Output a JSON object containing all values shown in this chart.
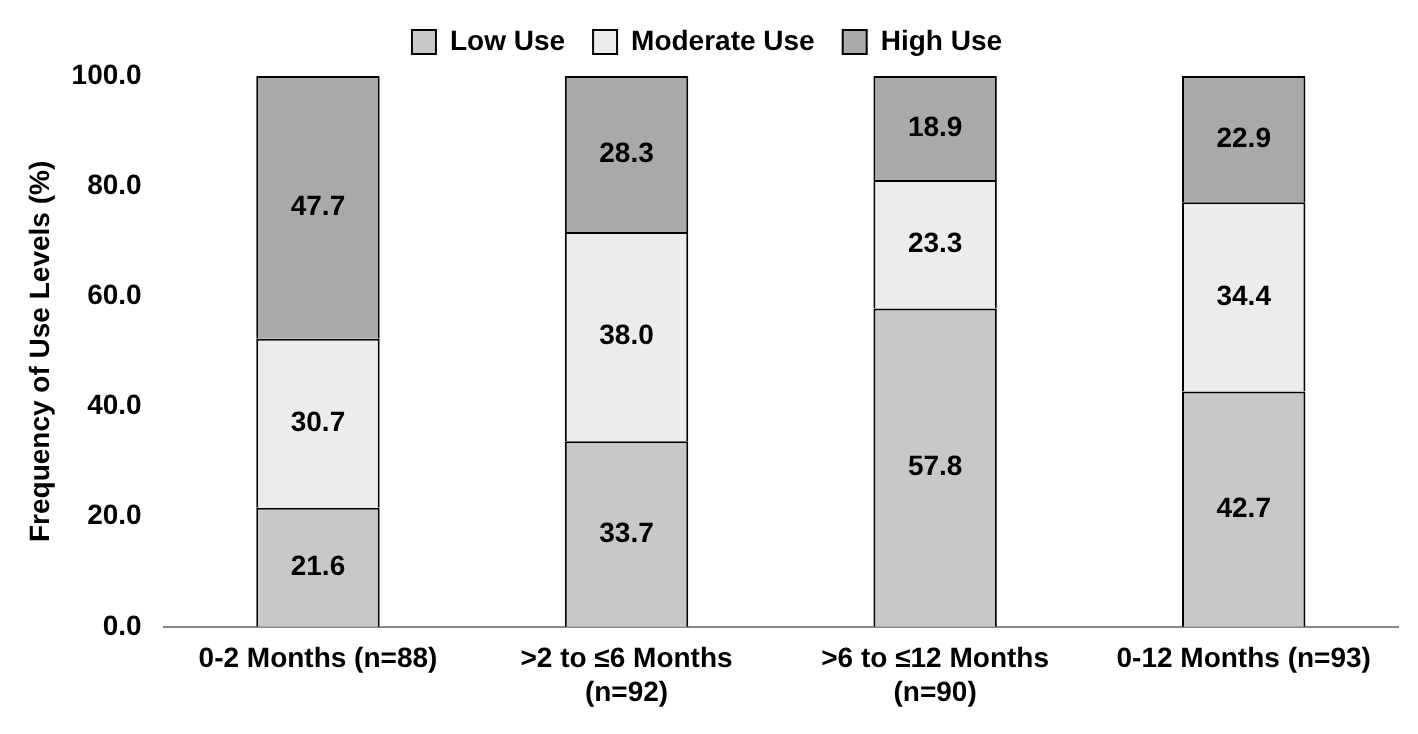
{
  "chart_data": {
    "type": "bar",
    "stacked": true,
    "ylabel": "Frequency of Use Levels (%)",
    "categories": [
      "0-2 Months (n=88)",
      ">2 to ≤6 Months (n=92)",
      ">6 to ≤12 Months (n=90)",
      "0-12 Months (n=93)"
    ],
    "series": [
      {
        "name": "Low Use",
        "color": "#c8c8c8",
        "values": [
          21.6,
          33.7,
          57.8,
          42.7
        ],
        "value_labels": [
          "21.6",
          "33.7",
          "57.8",
          "42.7"
        ]
      },
      {
        "name": "Moderate Use",
        "color": "#ececec",
        "values": [
          30.7,
          38.0,
          23.3,
          34.4
        ],
        "value_labels": [
          "30.7",
          "38.0",
          "23.3",
          "34.4"
        ]
      },
      {
        "name": "High Use",
        "color": "#a9a9a9",
        "values": [
          47.7,
          28.3,
          18.9,
          22.9
        ],
        "value_labels": [
          "47.7",
          "28.3",
          "18.9",
          "22.9"
        ]
      }
    ],
    "ylim": [
      0,
      100
    ],
    "yticks": [
      {
        "value": 0,
        "label": "0.0"
      },
      {
        "value": 20,
        "label": "20.0"
      },
      {
        "value": 40,
        "label": "40.0"
      },
      {
        "value": 60,
        "label": "60.0"
      },
      {
        "value": 80,
        "label": "80.0"
      },
      {
        "value": 100,
        "label": "100.0"
      }
    ],
    "grid": false,
    "legend": "top"
  }
}
